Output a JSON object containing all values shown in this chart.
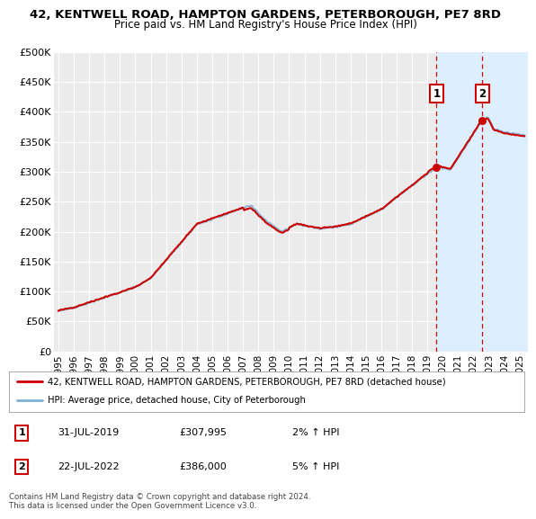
{
  "title": "42, KENTWELL ROAD, HAMPTON GARDENS, PETERBOROUGH, PE7 8RD",
  "subtitle": "Price paid vs. HM Land Registry's House Price Index (HPI)",
  "ylim": [
    0,
    500000
  ],
  "yticks": [
    0,
    50000,
    100000,
    150000,
    200000,
    250000,
    300000,
    350000,
    400000,
    450000,
    500000
  ],
  "ytick_labels": [
    "£0",
    "£50K",
    "£100K",
    "£150K",
    "£200K",
    "£250K",
    "£300K",
    "£350K",
    "£400K",
    "£450K",
    "£500K"
  ],
  "xlim_start": 1994.7,
  "xlim_end": 2025.5,
  "background_color": "#ffffff",
  "plot_bg_color": "#ebebeb",
  "grid_color": "#ffffff",
  "line1_color": "#cc0000",
  "line2_color": "#7ab0d4",
  "line1_label": "42, KENTWELL ROAD, HAMPTON GARDENS, PETERBOROUGH, PE7 8RD (detached house)",
  "line2_label": "HPI: Average price, detached house, City of Peterborough",
  "marker1_date": 2019.58,
  "marker1_value": 307995,
  "marker2_date": 2022.55,
  "marker2_value": 386000,
  "annotation1_label": "1",
  "annotation2_label": "2",
  "vline1_x": 2019.58,
  "vline2_x": 2022.55,
  "shaded_region_start": 2019.58,
  "shaded_region_end": 2025.5,
  "shaded_color": "#ddeeff",
  "footer_text": "Contains HM Land Registry data © Crown copyright and database right 2024.\nThis data is licensed under the Open Government Licence v3.0.",
  "legend1_date": "31-JUL-2019",
  "legend1_price": "£307,995",
  "legend1_hpi": "2% ↑ HPI",
  "legend2_date": "22-JUL-2022",
  "legend2_price": "£386,000",
  "legend2_hpi": "5% ↑ HPI"
}
